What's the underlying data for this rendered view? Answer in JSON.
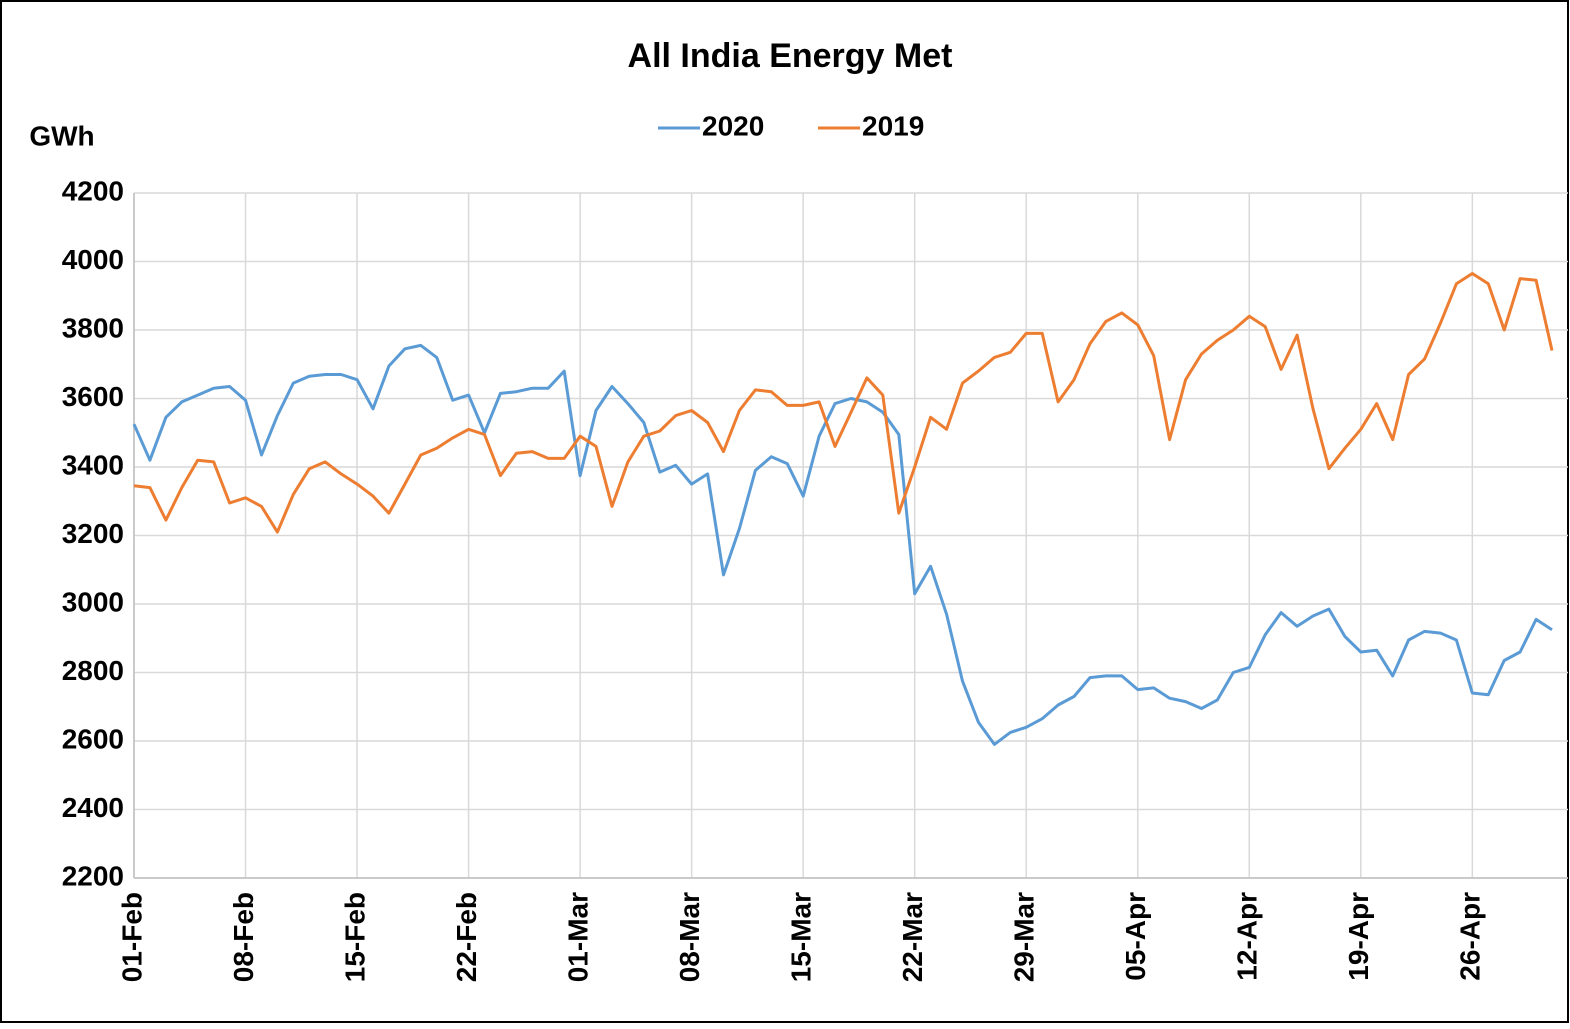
{
  "chart_data": {
    "type": "line",
    "title": "All India Energy Met",
    "y_label": "GWh",
    "categories": [
      "01-Feb",
      null,
      null,
      null,
      null,
      null,
      null,
      "08-Feb",
      null,
      null,
      null,
      null,
      null,
      null,
      "15-Feb",
      null,
      null,
      null,
      null,
      null,
      null,
      "22-Feb",
      null,
      null,
      null,
      null,
      null,
      null,
      "01-Mar",
      null,
      null,
      null,
      null,
      null,
      null,
      "08-Mar",
      null,
      null,
      null,
      null,
      null,
      null,
      "15-Mar",
      null,
      null,
      null,
      null,
      null,
      null,
      "22-Mar",
      null,
      null,
      null,
      null,
      null,
      null,
      "29-Mar",
      null,
      null,
      null,
      null,
      null,
      null,
      "05-Apr",
      null,
      null,
      null,
      null,
      null,
      null,
      "12-Apr",
      null,
      null,
      null,
      null,
      null,
      null,
      "19-Apr",
      null,
      null,
      null,
      null,
      null,
      null,
      "26-Apr",
      null,
      null,
      null,
      null,
      null
    ],
    "series": [
      {
        "name": "2020",
        "color": "#5b9bd5",
        "values": [
          3525,
          3420,
          3545,
          3590,
          3610,
          3630,
          3635,
          3595,
          3435,
          3550,
          3645,
          3665,
          3670,
          3670,
          3655,
          3570,
          3695,
          3745,
          3755,
          3720,
          3595,
          3610,
          3500,
          3615,
          3620,
          3630,
          3630,
          3680,
          3375,
          3565,
          3635,
          3585,
          3530,
          3385,
          3405,
          3350,
          3380,
          3085,
          3220,
          3390,
          3430,
          3410,
          3315,
          3490,
          3585,
          3600,
          3590,
          3560,
          3495,
          3030,
          3110,
          2970,
          2775,
          2655,
          2590,
          2625,
          2640,
          2665,
          2705,
          2730,
          2785,
          2790,
          2790,
          2750,
          2755,
          2725,
          2715,
          2695,
          2720,
          2800,
          2815,
          2910,
          2975,
          2935,
          2965,
          2985,
          2905,
          2860,
          2865,
          2790,
          2895,
          2920,
          2915,
          2895,
          2740,
          2735,
          2835,
          2860,
          2955,
          2925
        ]
      },
      {
        "name": "2019",
        "color": "#ed7d31",
        "values": [
          3345,
          3340,
          3245,
          3340,
          3420,
          3415,
          3295,
          3310,
          3285,
          3210,
          3320,
          3395,
          3415,
          3380,
          3350,
          3315,
          3265,
          3350,
          3435,
          3455,
          3485,
          3510,
          3495,
          3375,
          3440,
          3445,
          3425,
          3425,
          3490,
          3460,
          3285,
          3415,
          3490,
          3505,
          3550,
          3565,
          3530,
          3445,
          3565,
          3625,
          3620,
          3580,
          3580,
          3590,
          3460,
          3560,
          3660,
          3610,
          3265,
          3400,
          3545,
          3510,
          3645,
          3680,
          3720,
          3735,
          3790,
          3790,
          3590,
          3655,
          3760,
          3825,
          3850,
          3815,
          3725,
          3480,
          3655,
          3730,
          3770,
          3800,
          3840,
          3810,
          3685,
          3785,
          3570,
          3395,
          3455,
          3510,
          3585,
          3480,
          3670,
          3715,
          3820,
          3935,
          3965,
          3935,
          3800,
          3950,
          3945,
          3740
        ]
      }
    ],
    "ylim": [
      2200,
      4200
    ],
    "yticks": [
      2200,
      2400,
      2600,
      2800,
      3000,
      3200,
      3400,
      3600,
      3800,
      4000,
      4200
    ],
    "grid": true
  }
}
